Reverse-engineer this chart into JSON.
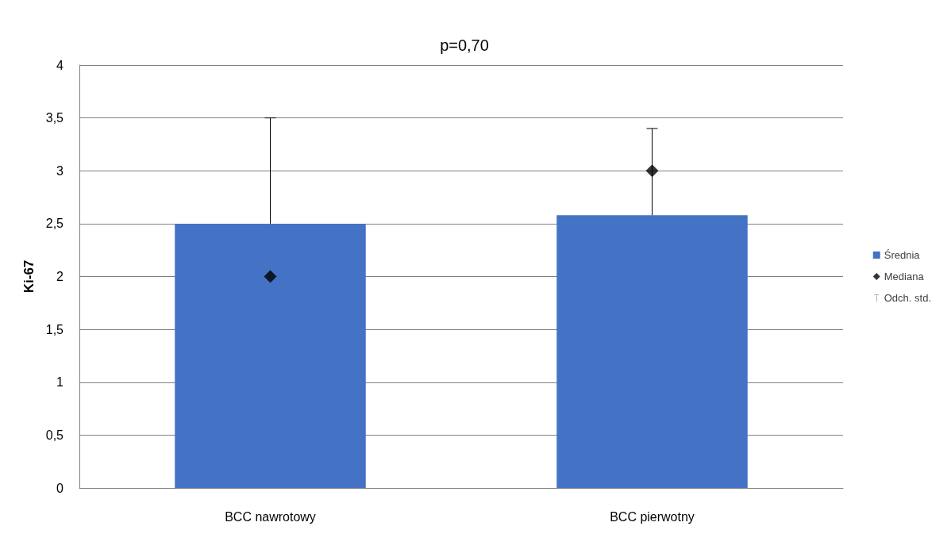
{
  "chart_data": {
    "type": "bar",
    "title": "p=0,70",
    "ylabel": "Ki-67",
    "categories": [
      "BCC nawrotowy",
      "BCC pierwotny"
    ],
    "series": [
      {
        "name": "Średnia",
        "color": "#4472c4",
        "values": [
          2.5,
          2.58
        ],
        "errors": [
          [
            2.5,
            3.5
          ],
          [
            2.58,
            3.4
          ]
        ]
      },
      {
        "name": "Mediana",
        "type": "scatter",
        "color": "#000000",
        "x": [
          "BCC nawrotowy",
          "BCC pierwotny"
        ],
        "values": [
          2,
          3
        ],
        "marker": "diamond"
      }
    ],
    "annotations": [
      "Odch. std."
    ],
    "ylim": [
      0,
      4
    ],
    "yticks": [
      0,
      {
        "value": 0.5,
        "label": "0,5"
      },
      1,
      {
        "value": 1.5,
        "label": "1,5"
      },
      2,
      {
        "value": 2.5,
        "label": "2,5"
      },
      3,
      {
        "value": 3.5,
        "label": "3,5"
      },
      4
    ],
    "grid": "y",
    "legend": "right"
  }
}
